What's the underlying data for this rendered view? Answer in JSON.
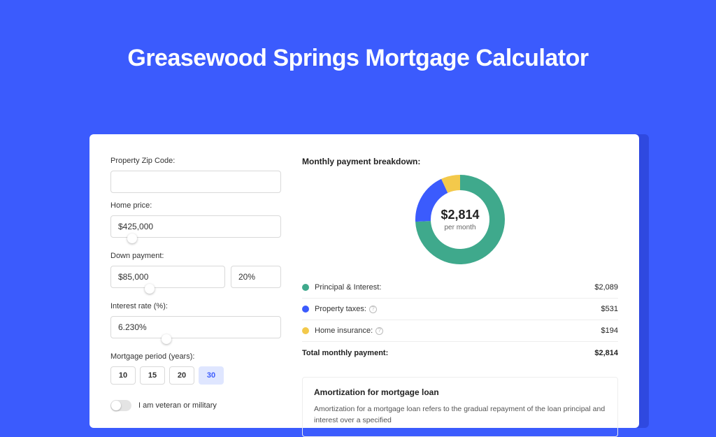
{
  "page": {
    "title": "Greasewood Springs Mortgage Calculator",
    "background_color": "#3b5bfd",
    "card_shadow_color": "#2f49e0"
  },
  "form": {
    "zip": {
      "label": "Property Zip Code:",
      "value": ""
    },
    "home_price": {
      "label": "Home price:",
      "value": "$425,000",
      "slider_pct": 10
    },
    "down_payment": {
      "label": "Down payment:",
      "value": "$85,000",
      "pct": "20%",
      "slider_pct": 20
    },
    "interest_rate": {
      "label": "Interest rate (%):",
      "value": "6.230%",
      "slider_pct": 30
    },
    "period": {
      "label": "Mortgage period (years):",
      "options": [
        "10",
        "15",
        "20",
        "30"
      ],
      "selected": "30"
    },
    "veteran": {
      "label": "I am veteran or military",
      "on": false
    }
  },
  "breakdown": {
    "title": "Monthly payment breakdown:",
    "center_amount": "$2,814",
    "center_sub": "per month",
    "donut": {
      "slices": [
        {
          "key": "principal_interest",
          "value": 2089,
          "color": "#3fa98c"
        },
        {
          "key": "property_taxes",
          "value": 531,
          "color": "#3b5bfd"
        },
        {
          "key": "home_insurance",
          "value": 194,
          "color": "#f3c94b"
        }
      ],
      "thickness": 22,
      "radius": 64
    },
    "lines": [
      {
        "label": "Principal & Interest:",
        "amount": "$2,089",
        "color": "#3fa98c",
        "info": false
      },
      {
        "label": "Property taxes:",
        "amount": "$531",
        "color": "#3b5bfd",
        "info": true
      },
      {
        "label": "Home insurance:",
        "amount": "$194",
        "color": "#f3c94b",
        "info": true
      }
    ],
    "total_label": "Total monthly payment:",
    "total_amount": "$2,814"
  },
  "amortization": {
    "title": "Amortization for mortgage loan",
    "text": "Amortization for a mortgage loan refers to the gradual repayment of the loan principal and interest over a specified"
  }
}
